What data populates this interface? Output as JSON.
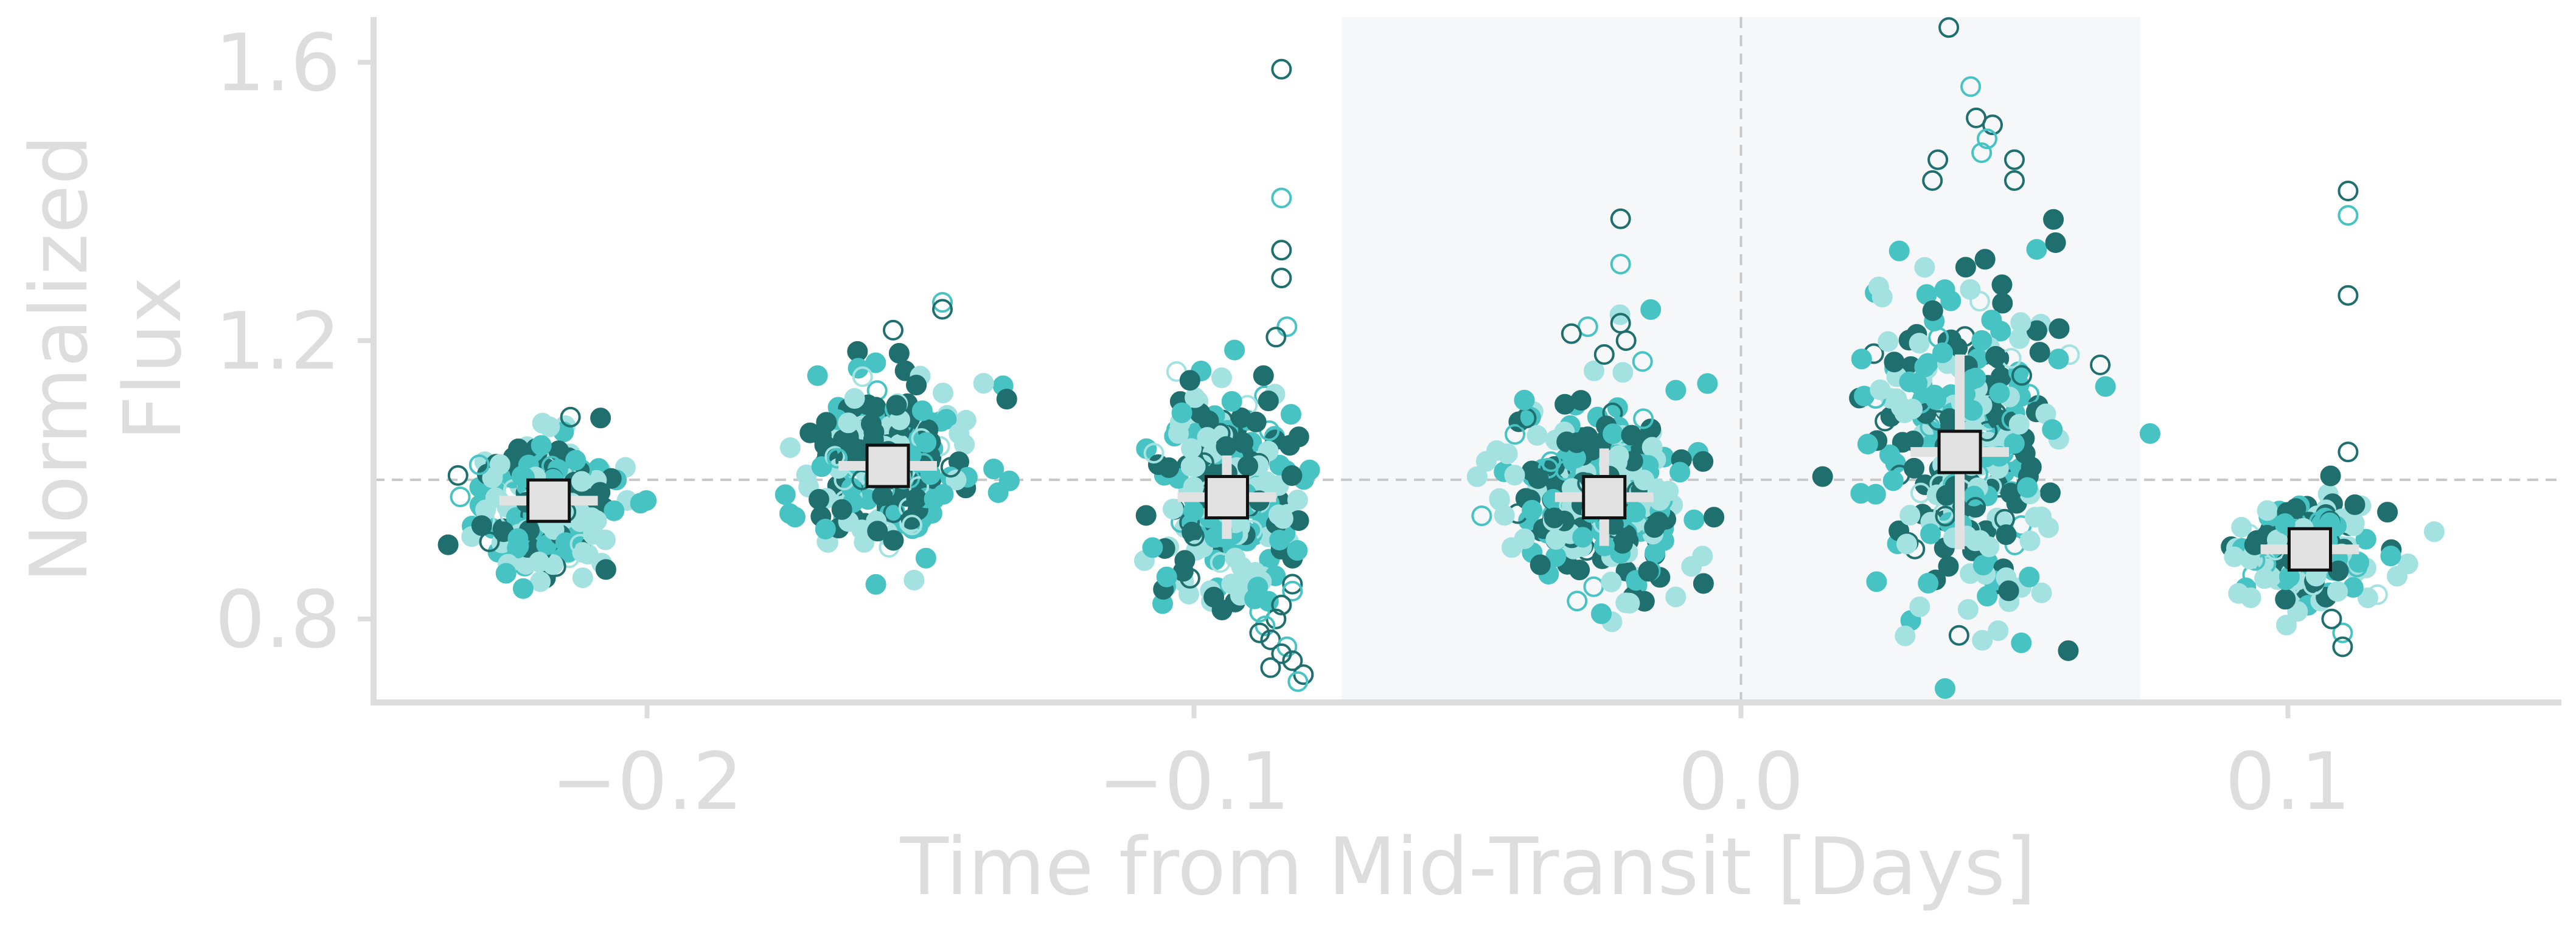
{
  "chart_data": {
    "type": "scatter",
    "title": "",
    "xlabel": "Time from Mid-Transit [Days]",
    "ylabel_lines": [
      "Normalized",
      "Flux"
    ],
    "xlim": [
      -0.25,
      0.15
    ],
    "ylim": [
      0.68,
      1.665
    ],
    "xticks": [
      -0.2,
      -0.1,
      0.0,
      0.1
    ],
    "xtick_labels": [
      "−0.2",
      "−0.1",
      "0.0",
      "0.1"
    ],
    "yticks": [
      0.8,
      1.2,
      1.6
    ],
    "ytick_labels": [
      "0.8",
      "1.2",
      "1.6"
    ],
    "grid": false,
    "reference_line_y": 1.0,
    "reference_line_x": 0.0,
    "transit_shade": [
      -0.073,
      0.073
    ],
    "colors": {
      "dark_teal": "#1f6f6f",
      "mid_teal": "#48c3c3",
      "light_teal": "#a4e2e2",
      "axis": "#dddddd",
      "text": "#dddddd",
      "shade": "#f6f7f9",
      "dashed": "#c8c8c8",
      "bin_fill": "#e2e2e2",
      "bin_edge": "#111111"
    },
    "clusters": [
      {
        "center": -0.218,
        "spread": 0.006,
        "y_mean": 0.97,
        "y_sd": 0.045,
        "n_filled": 260,
        "outliers": [
          [
            -0.214,
            1.09
          ]
        ]
      },
      {
        "center": -0.156,
        "spread": 0.007,
        "y_mean": 1.02,
        "y_sd": 0.06,
        "n_filled": 260,
        "outliers": [
          [
            -0.155,
            1.215
          ],
          [
            -0.146,
            1.255
          ],
          [
            -0.146,
            1.245
          ]
        ]
      },
      {
        "center": -0.094,
        "spread": 0.007,
        "y_mean": 0.99,
        "y_sd": 0.08,
        "n_filled": 240,
        "outliers": [
          [
            -0.084,
            1.59
          ],
          [
            -0.084,
            1.405
          ],
          [
            -0.084,
            1.33
          ],
          [
            -0.084,
            1.29
          ],
          [
            -0.083,
            1.22
          ],
          [
            -0.085,
            1.205
          ],
          [
            -0.082,
            0.85
          ],
          [
            -0.082,
            0.84
          ],
          [
            -0.084,
            0.82
          ],
          [
            -0.085,
            0.8
          ],
          [
            -0.087,
            0.79
          ],
          [
            -0.088,
            0.78
          ],
          [
            -0.086,
            0.77
          ],
          [
            -0.083,
            0.76
          ],
          [
            -0.082,
            0.74
          ],
          [
            -0.08,
            0.72
          ],
          [
            -0.081,
            0.71
          ],
          [
            -0.086,
            0.73
          ],
          [
            -0.084,
            0.75
          ],
          [
            -0.088,
            0.81
          ]
        ]
      },
      {
        "center": -0.026,
        "spread": 0.008,
        "y_mean": 0.97,
        "y_sd": 0.07,
        "n_filled": 260,
        "outliers": [
          [
            -0.022,
            1.375
          ],
          [
            -0.022,
            1.31
          ],
          [
            -0.022,
            1.225
          ],
          [
            -0.021,
            1.2
          ],
          [
            -0.028,
            1.22
          ],
          [
            -0.031,
            1.21
          ],
          [
            -0.025,
            1.18
          ],
          [
            -0.018,
            1.17
          ]
        ]
      },
      {
        "center": 0.041,
        "spread": 0.009,
        "y_mean": 1.04,
        "y_sd": 0.12,
        "n_filled": 300,
        "outliers": [
          [
            0.038,
            1.65
          ],
          [
            0.042,
            1.565
          ],
          [
            0.043,
            1.52
          ],
          [
            0.046,
            1.51
          ],
          [
            0.045,
            1.49
          ],
          [
            0.05,
            1.46
          ],
          [
            0.05,
            1.43
          ],
          [
            0.044,
            1.47
          ],
          [
            0.036,
            1.46
          ],
          [
            0.035,
            1.43
          ]
        ]
      },
      {
        "center": 0.104,
        "spread": 0.007,
        "y_mean": 0.9,
        "y_sd": 0.04,
        "n_filled": 170,
        "outliers": [
          [
            0.111,
            1.415
          ],
          [
            0.111,
            1.38
          ],
          [
            0.111,
            1.265
          ],
          [
            0.111,
            1.04
          ],
          [
            0.11,
            0.78
          ],
          [
            0.11,
            0.76
          ],
          [
            0.108,
            0.8
          ]
        ]
      }
    ],
    "binned_points": [
      {
        "x": -0.218,
        "y": 0.97,
        "xerr": 0.009,
        "yerr": 0.022
      },
      {
        "x": -0.156,
        "y": 1.02,
        "xerr": 0.009,
        "yerr": 0.028
      },
      {
        "x": -0.094,
        "y": 0.975,
        "xerr": 0.009,
        "yerr": 0.06
      },
      {
        "x": -0.025,
        "y": 0.975,
        "xerr": 0.009,
        "yerr": 0.07
      },
      {
        "x": 0.04,
        "y": 1.04,
        "xerr": 0.009,
        "yerr": 0.14
      },
      {
        "x": 0.104,
        "y": 0.9,
        "xerr": 0.009,
        "yerr": 0.022
      }
    ]
  }
}
